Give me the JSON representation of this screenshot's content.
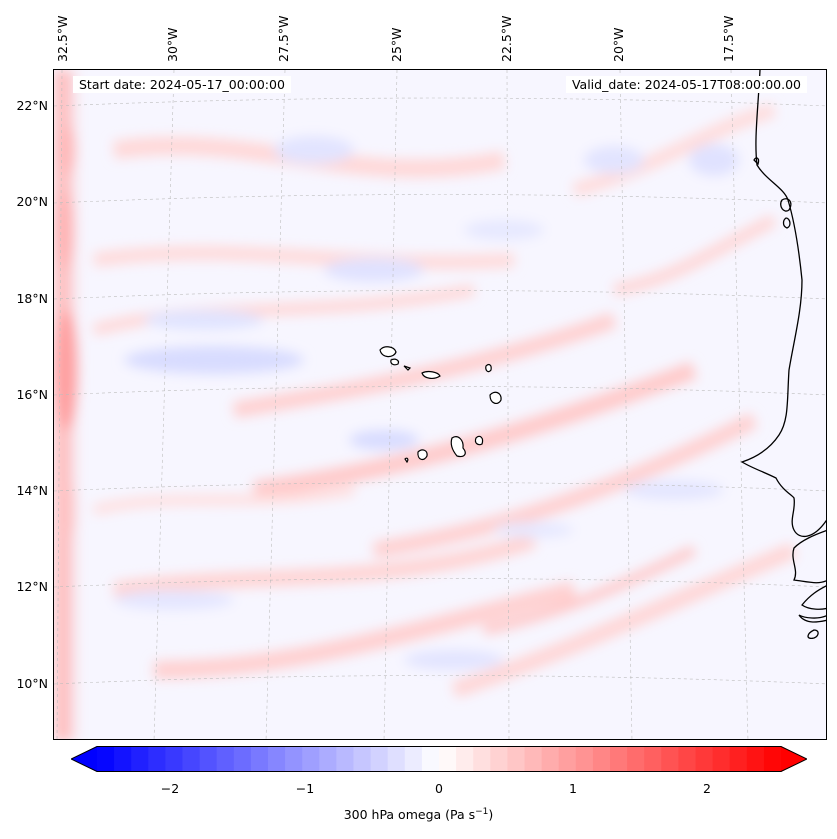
{
  "header": {
    "start_date": "Start date: 2024-05-17_00:00:00",
    "valid_date": "Valid_date: 2024-05-17T08:00:00.00"
  },
  "axes": {
    "longitude_labels": [
      "32.5°W",
      "30°W",
      "27.5°W",
      "25°W",
      "22.5°W",
      "20°W",
      "17.5°W"
    ],
    "latitude_labels": [
      "22°N",
      "20°N",
      "18°N",
      "16°N",
      "14°N",
      "12°N",
      "10°N"
    ]
  },
  "colorbar": {
    "label_prefix": "300 hPa omega (Pa s",
    "label_sup": "−1",
    "label_suffix": ")",
    "ticks": [
      "−2",
      "−1",
      "0",
      "1",
      "2"
    ],
    "range": [
      -2.6,
      2.6
    ],
    "colors": {
      "negative": "#0000ff",
      "zero": "#ffffff",
      "positive": "#ff0000"
    }
  },
  "map": {
    "field": "300 hPa omega",
    "coastline_color": "#000000",
    "gridline_color": "#bbbbbb"
  }
}
